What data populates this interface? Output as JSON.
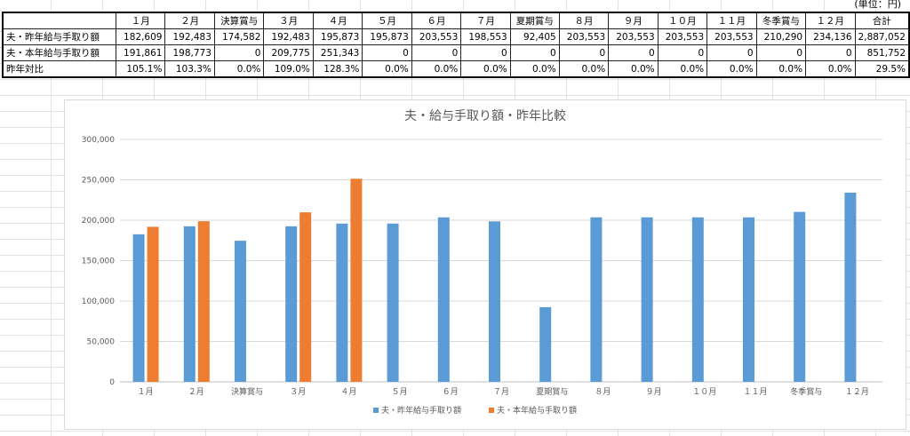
{
  "unit_note": "(単位：円)",
  "table": {
    "headers": [
      "",
      "１月",
      "２月",
      "決算賞与",
      "３月",
      "４月",
      "５月",
      "６月",
      "７月",
      "夏期賞与",
      "８月",
      "９月",
      "１０月",
      "１１月",
      "冬季賞与",
      "１２月",
      "合計"
    ],
    "rows": [
      {
        "label": "夫・昨年給与手取り額",
        "values": [
          "182,609",
          "192,483",
          "174,582",
          "192,483",
          "195,873",
          "195,873",
          "203,553",
          "198,553",
          "92,405",
          "203,553",
          "203,553",
          "203,553",
          "203,553",
          "210,290",
          "234,136",
          "2,887,052"
        ]
      },
      {
        "label": "夫・本年給与手取り額",
        "values": [
          "191,861",
          "198,773",
          "0",
          "209,775",
          "251,343",
          "0",
          "0",
          "0",
          "0",
          "0",
          "0",
          "0",
          "0",
          "0",
          "0",
          "851,752"
        ]
      },
      {
        "label": "昨年対比",
        "values": [
          "105.1%",
          "103.3%",
          "0.0%",
          "109.0%",
          "128.3%",
          "0.0%",
          "0.0%",
          "0.0%",
          "0.0%",
          "0.0%",
          "0.0%",
          "0.0%",
          "0.0%",
          "0.0%",
          "0.0%",
          "29.5%"
        ]
      }
    ]
  },
  "chart_data": {
    "type": "bar",
    "title": "夫・給与手取り額・昨年比較",
    "categories": [
      "１月",
      "２月",
      "決算賞与",
      "３月",
      "４月",
      "５月",
      "６月",
      "７月",
      "夏期賞与",
      "８月",
      "９月",
      "１０月",
      "１１月",
      "冬季賞与",
      "１２月"
    ],
    "series": [
      {
        "name": "夫・昨年給与手取り額",
        "color": "#5b9bd5",
        "values": [
          182609,
          192483,
          174582,
          192483,
          195873,
          195873,
          203553,
          198553,
          92405,
          203553,
          203553,
          203553,
          203553,
          210290,
          234136
        ]
      },
      {
        "name": "夫・本年給与手取り額",
        "color": "#ed7d31",
        "values": [
          191861,
          198773,
          0,
          209775,
          251343,
          0,
          0,
          0,
          0,
          0,
          0,
          0,
          0,
          0,
          0
        ]
      }
    ],
    "yticks": [
      "0",
      "50,000",
      "100,000",
      "150,000",
      "200,000",
      "250,000",
      "300,000"
    ],
    "ylim": [
      0,
      300000
    ],
    "grid": true,
    "legend_position": "bottom"
  }
}
